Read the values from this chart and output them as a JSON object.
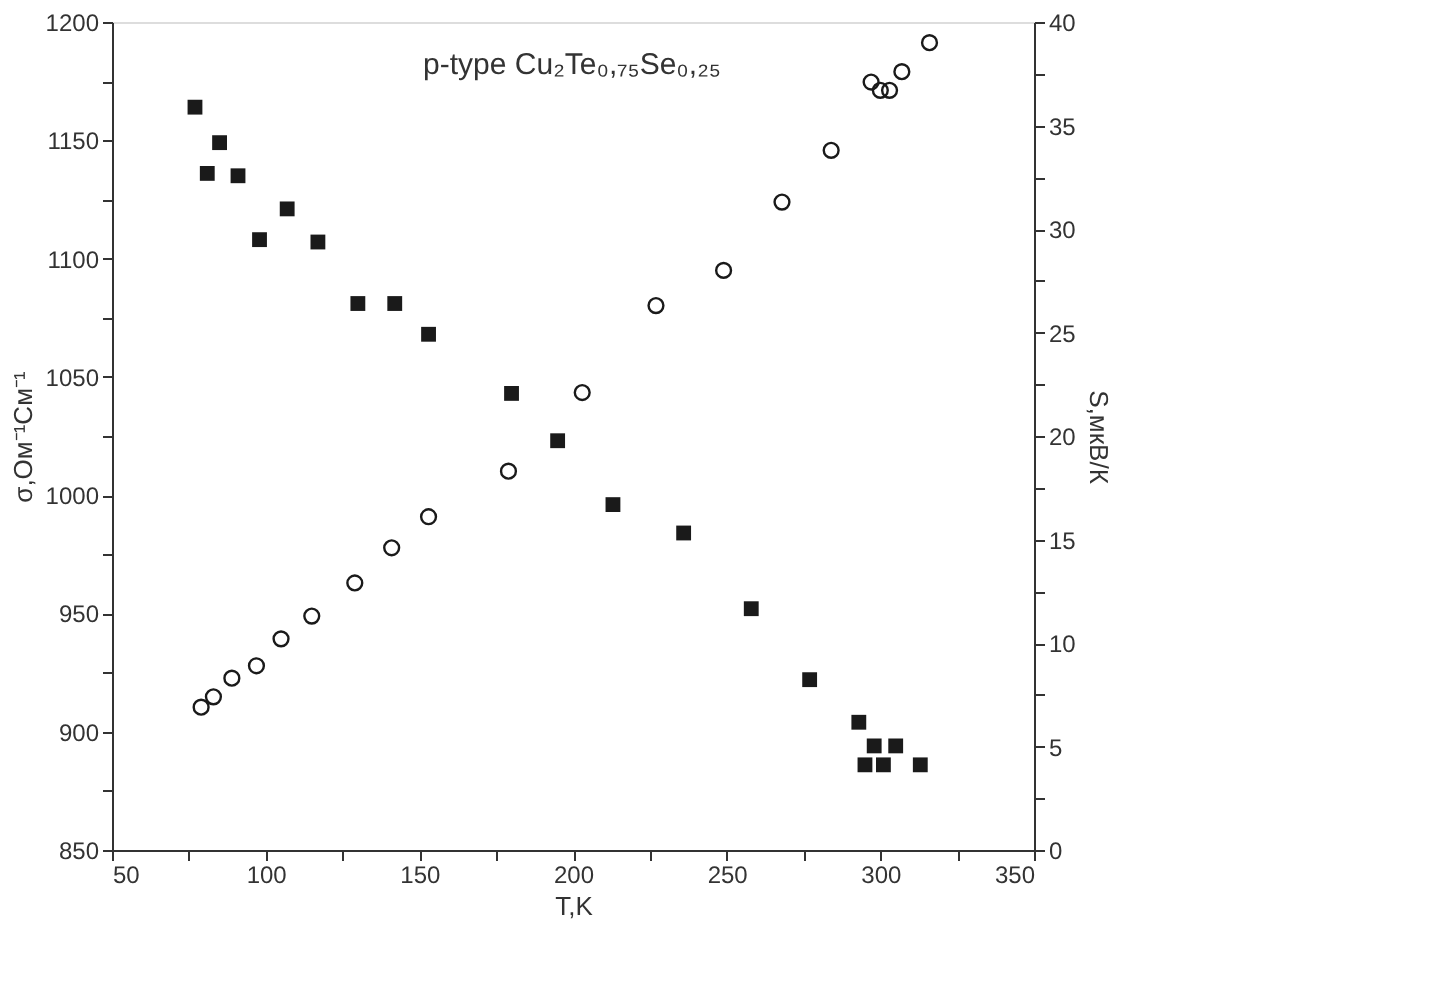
{
  "chart_data": {
    "type": "scatter",
    "xlabel": "T,K",
    "ylabel": "σ,Ом⁻¹См⁻¹",
    "y2label": "S,мкВ/К",
    "annotations": [
      "p-type Cu₂Te₀,₇₅Se₀,₂₅"
    ],
    "xlim": [
      50,
      350
    ],
    "xticks": [
      50,
      {
        "value": 75,
        "label": null
      },
      100,
      {
        "value": 125,
        "label": null
      },
      150,
      {
        "value": 175,
        "label": null
      },
      200,
      {
        "value": 225,
        "label": null
      },
      250,
      {
        "value": 275,
        "label": null
      },
      300,
      {
        "value": 325,
        "label": null
      },
      350
    ],
    "ylim": [
      850,
      1200
    ],
    "yticks": [
      850,
      {
        "value": 875,
        "label": null
      },
      900,
      {
        "value": 925,
        "label": null
      },
      950,
      {
        "value": 975,
        "label": null
      },
      1000,
      {
        "value": 1025,
        "label": null
      },
      1050,
      {
        "value": 1075,
        "label": null
      },
      1100,
      {
        "value": 1125,
        "label": null
      },
      1150,
      {
        "value": 1175,
        "label": null
      },
      1200
    ],
    "y2lim": [
      0,
      40
    ],
    "y2ticks": [
      0,
      {
        "value": 2.5,
        "label": null
      },
      5,
      {
        "value": 7.5,
        "label": null
      },
      10,
      {
        "value": 12.5,
        "label": null
      },
      15,
      {
        "value": 17.5,
        "label": null
      },
      20,
      {
        "value": 22.5,
        "label": null
      },
      25,
      {
        "value": 27.5,
        "label": null
      },
      30,
      {
        "value": 32.5,
        "label": null
      },
      35,
      {
        "value": 37.5,
        "label": null
      },
      40
    ],
    "grid": false,
    "series": [
      {
        "color": "#1a1a1a",
        "marker": "square",
        "x": [
          77,
          85,
          81,
          91,
          98,
          107,
          117,
          130,
          142,
          153,
          180,
          195,
          213,
          236,
          258,
          277,
          293,
          295,
          298,
          301,
          305,
          313
        ],
        "values": [
          1164,
          1149,
          1136,
          1135,
          1108,
          1121,
          1107,
          1081,
          1081,
          1068,
          1043,
          1023,
          996,
          984,
          952,
          922,
          904,
          886,
          894,
          886,
          894,
          886
        ]
      },
      {
        "color": "#1a1a1a",
        "marker": "circle",
        "axis": "y2",
        "x": [
          79,
          83,
          89,
          97,
          105,
          115,
          129,
          141,
          153,
          179,
          203,
          227,
          249,
          268,
          284,
          297,
          300,
          303,
          307,
          316
        ],
        "values": [
          6.9,
          7.4,
          8.3,
          8.9,
          10.2,
          11.3,
          12.9,
          14.6,
          16.1,
          18.3,
          22.1,
          26.3,
          28.0,
          31.3,
          33.8,
          37.1,
          36.7,
          36.7,
          37.6,
          39.0
        ]
      }
    ]
  }
}
